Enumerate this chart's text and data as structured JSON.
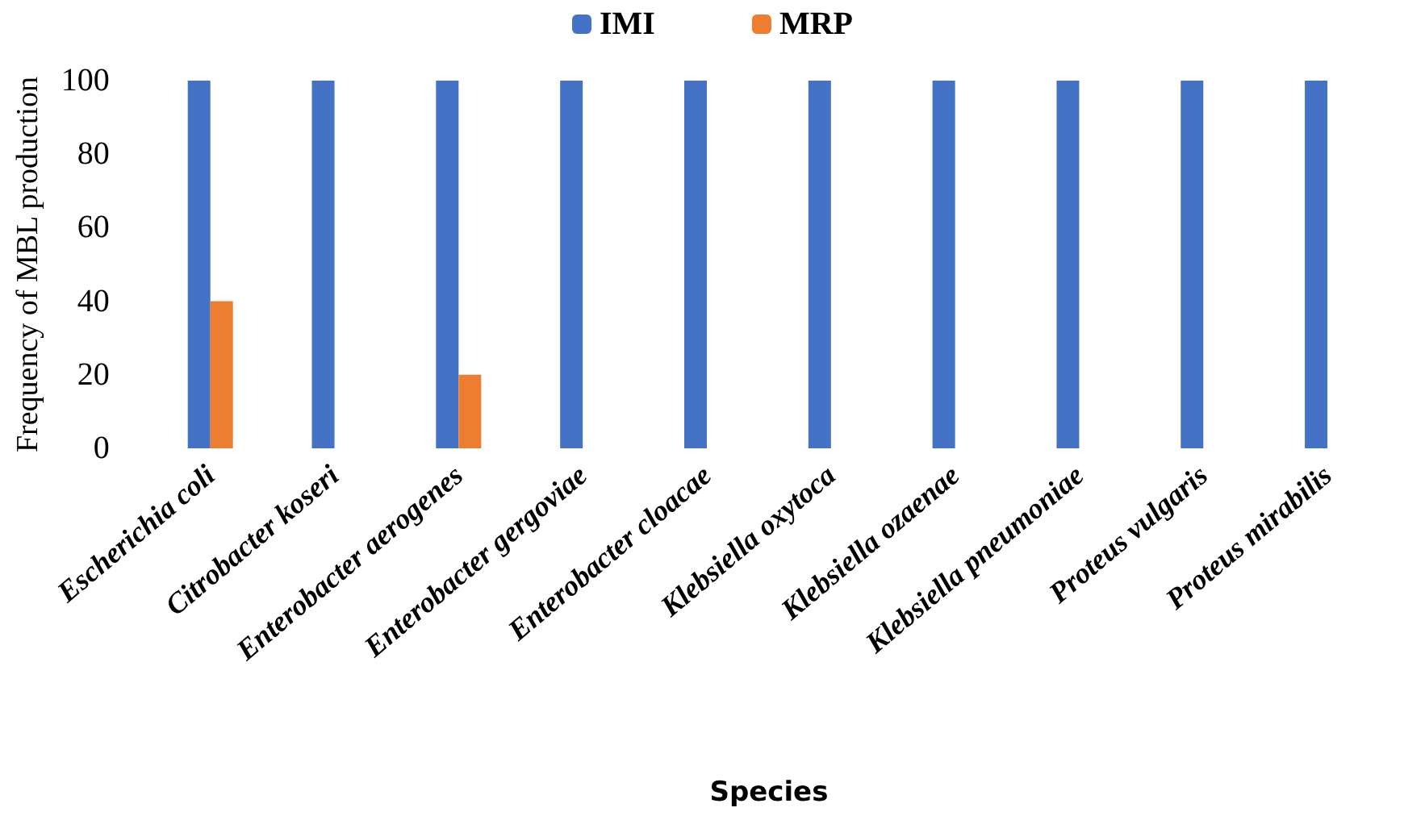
{
  "chart_data": {
    "type": "bar",
    "xlabel": "Species",
    "ylabel": "Frequency of MBL production",
    "categories": [
      "Escherichia coli",
      "Citrobacter koseri",
      "Enterobacter aerogenes",
      "Enterobacter gergoviae",
      "Enterobacter cloacae",
      "Klebsiella oxytoca",
      "Klebsiella ozaenae",
      "Klebsiella pneumoniae",
      "Proteus vulgaris",
      "Proteus mirabilis"
    ],
    "series": [
      {
        "name": "IMI",
        "color": "#4472c4",
        "values": [
          100,
          100,
          100,
          100,
          100,
          100,
          100,
          100,
          100,
          100
        ]
      },
      {
        "name": "MRP",
        "color": "#ed7d31",
        "values": [
          40,
          0,
          20,
          0,
          0,
          0,
          0,
          0,
          0,
          0
        ]
      }
    ],
    "ylim": [
      0,
      100
    ],
    "yticks": [
      0,
      20,
      40,
      60,
      80,
      100
    ],
    "grid": false,
    "legend": "top"
  }
}
